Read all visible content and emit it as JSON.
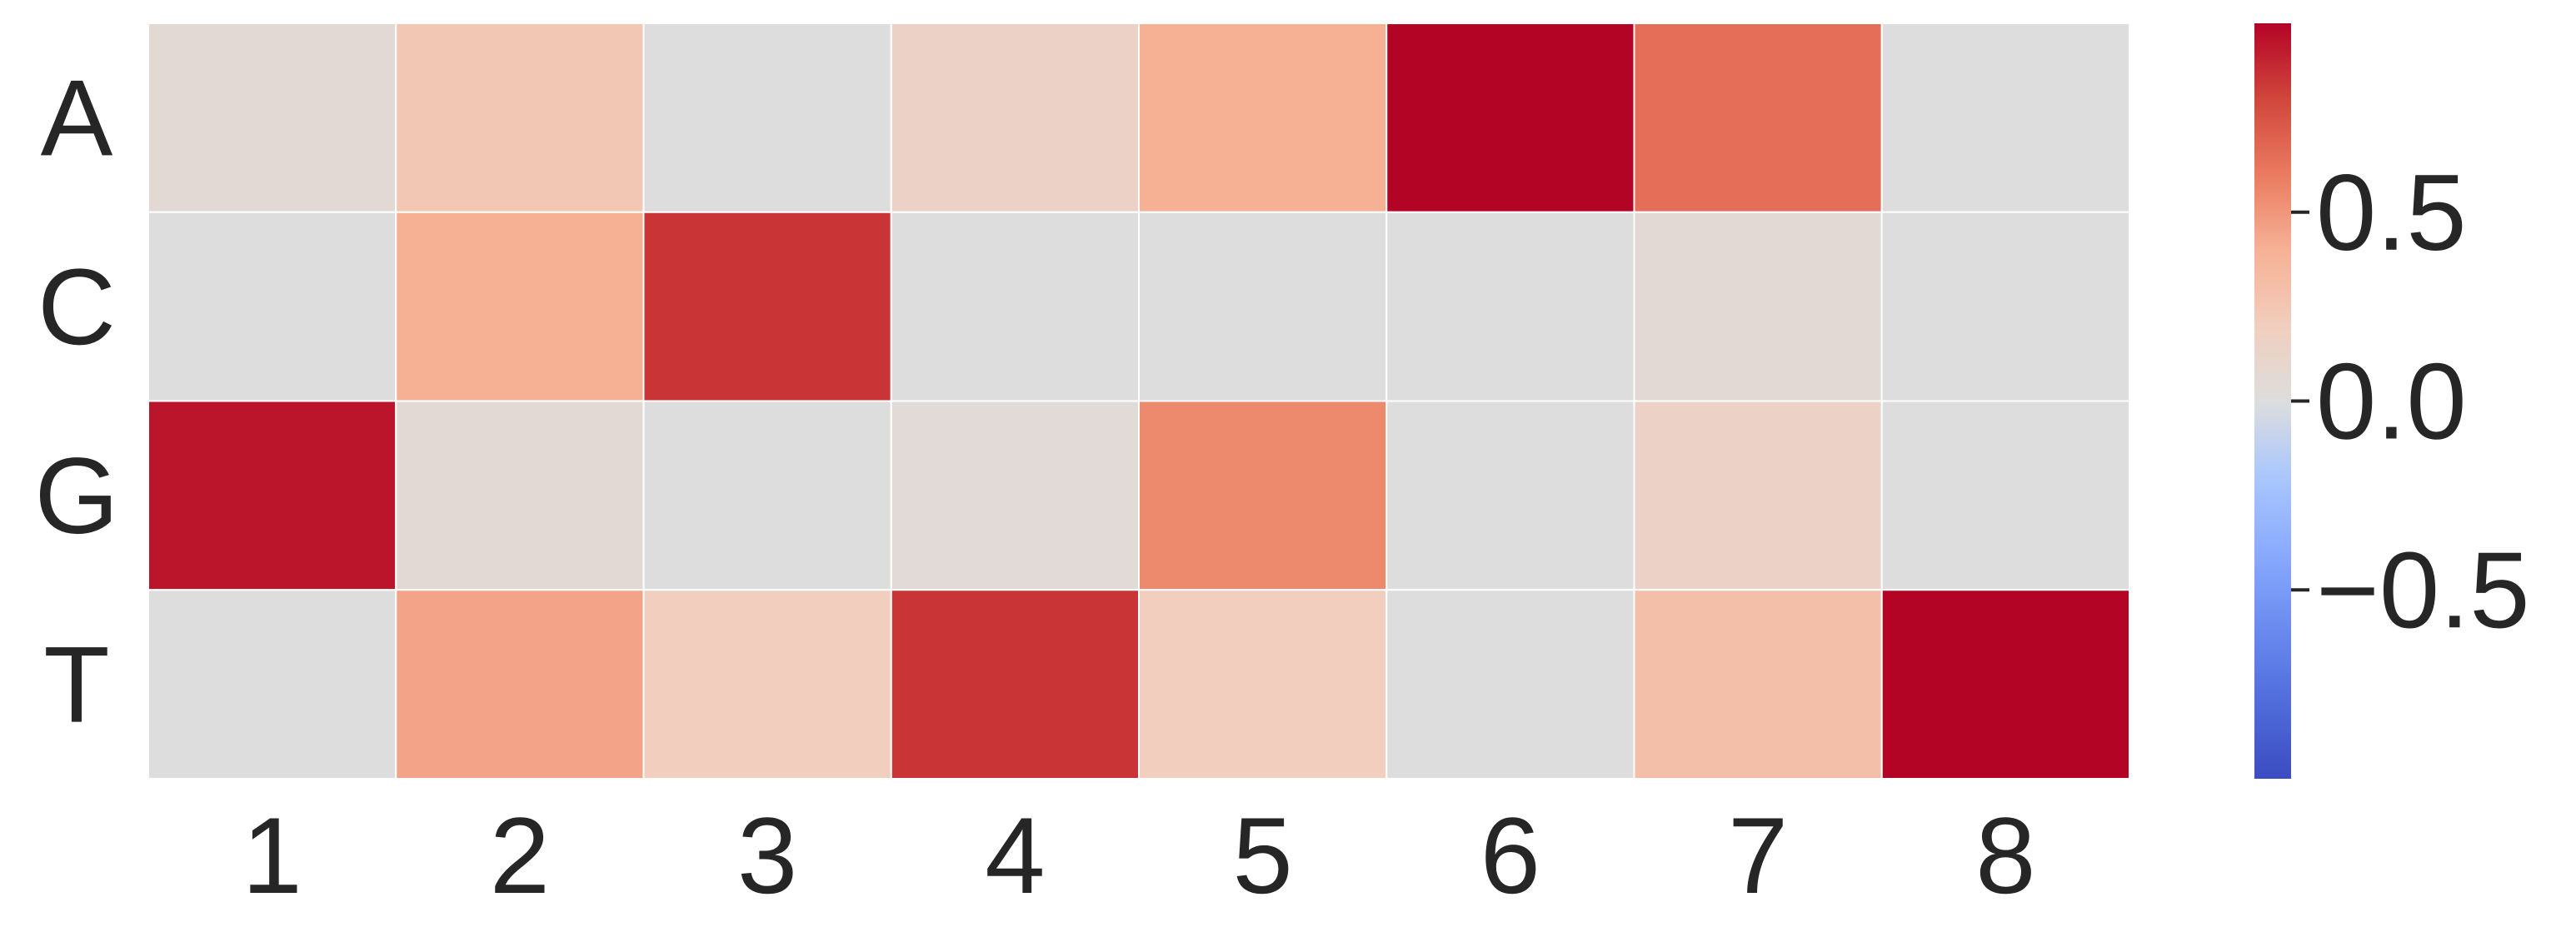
{
  "chart_data": {
    "type": "heatmap",
    "title": "",
    "xlabel": "",
    "ylabel": "",
    "x_categories": [
      "1",
      "2",
      "3",
      "4",
      "5",
      "6",
      "7",
      "8"
    ],
    "y_categories": [
      "A",
      "C",
      "G",
      "T"
    ],
    "values": [
      [
        0.05,
        0.25,
        0.0,
        0.15,
        0.4,
        1.0,
        0.65,
        0.0
      ],
      [
        0.0,
        0.4,
        0.85,
        0.0,
        0.0,
        0.0,
        0.06,
        0.0
      ],
      [
        0.95,
        0.05,
        0.0,
        0.04,
        0.55,
        0.0,
        0.15,
        0.0
      ],
      [
        0.0,
        0.45,
        0.2,
        0.85,
        0.2,
        0.0,
        0.3,
        1.0
      ]
    ],
    "colormap": "coolwarm",
    "vmin": -1.0,
    "vmax": 1.0,
    "colorbar": {
      "ticks": [
        0.5,
        0.0,
        -0.5
      ],
      "tick_labels": [
        "0.5",
        "0.0",
        "−0.5"
      ]
    },
    "grid": false,
    "cell_border_color": "#ffffff"
  }
}
